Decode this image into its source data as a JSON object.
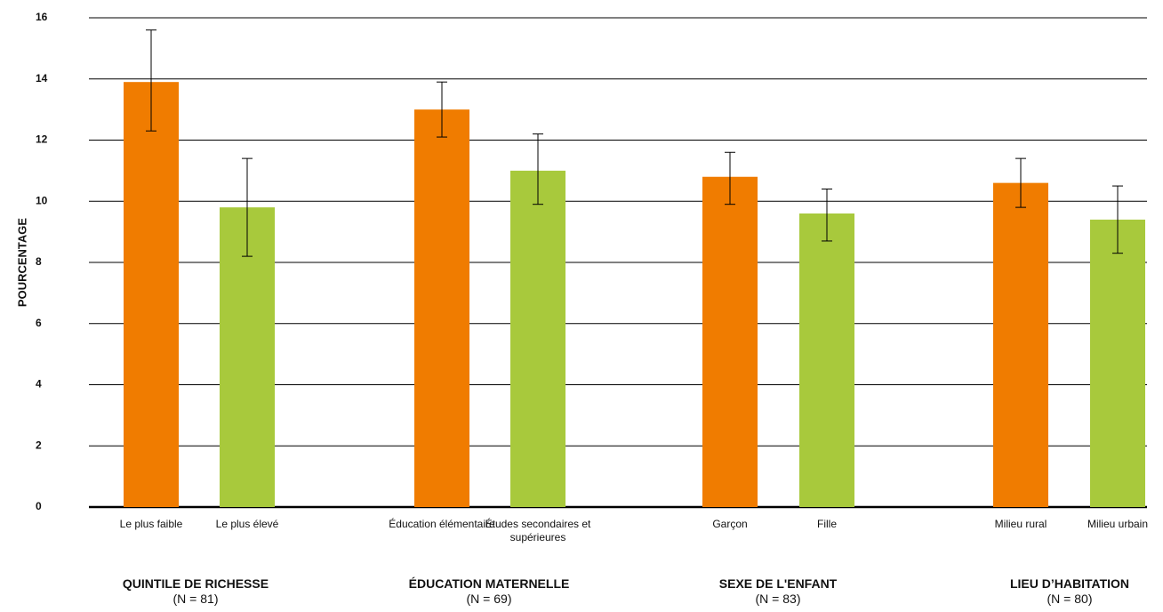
{
  "chart_data": {
    "type": "bar",
    "y_label": "POURCENTAGE",
    "categories": [
      "Le plus faible",
      "Le plus élevé",
      "Éducation élémentaire",
      "Études secondaires et supérieures",
      "Garçon",
      "Fille",
      "Milieu rural",
      "Milieu urbain"
    ],
    "values": [
      13.9,
      9.8,
      13.0,
      11.0,
      10.8,
      9.6,
      10.6,
      9.4
    ],
    "ci_low": [
      12.3,
      8.2,
      12.1,
      9.9,
      9.9,
      8.7,
      9.8,
      8.3
    ],
    "ci_high": [
      15.6,
      11.4,
      13.9,
      12.2,
      11.6,
      10.4,
      11.4,
      10.5
    ],
    "colors": [
      "#f07c00",
      "#a8c93c",
      "#f07c00",
      "#a8c93c",
      "#f07c00",
      "#a8c93c",
      "#f07c00",
      "#a8c93c"
    ],
    "groups": [
      {
        "name": "QUINTILE DE RICHESSE",
        "n": "(N = 81)"
      },
      {
        "name": "ÉDUCATION MATERNELLE",
        "n": "(N = 69)"
      },
      {
        "name": "SEXE DE L'ENFANT",
        "n": "(N = 83)"
      },
      {
        "name": "LIEU D’HABITATION",
        "n": "(N = 80)"
      }
    ],
    "ylim": [
      0,
      16
    ],
    "yticks": [
      0,
      2,
      4,
      6,
      8,
      10,
      12,
      14,
      16
    ],
    "grid": true
  }
}
